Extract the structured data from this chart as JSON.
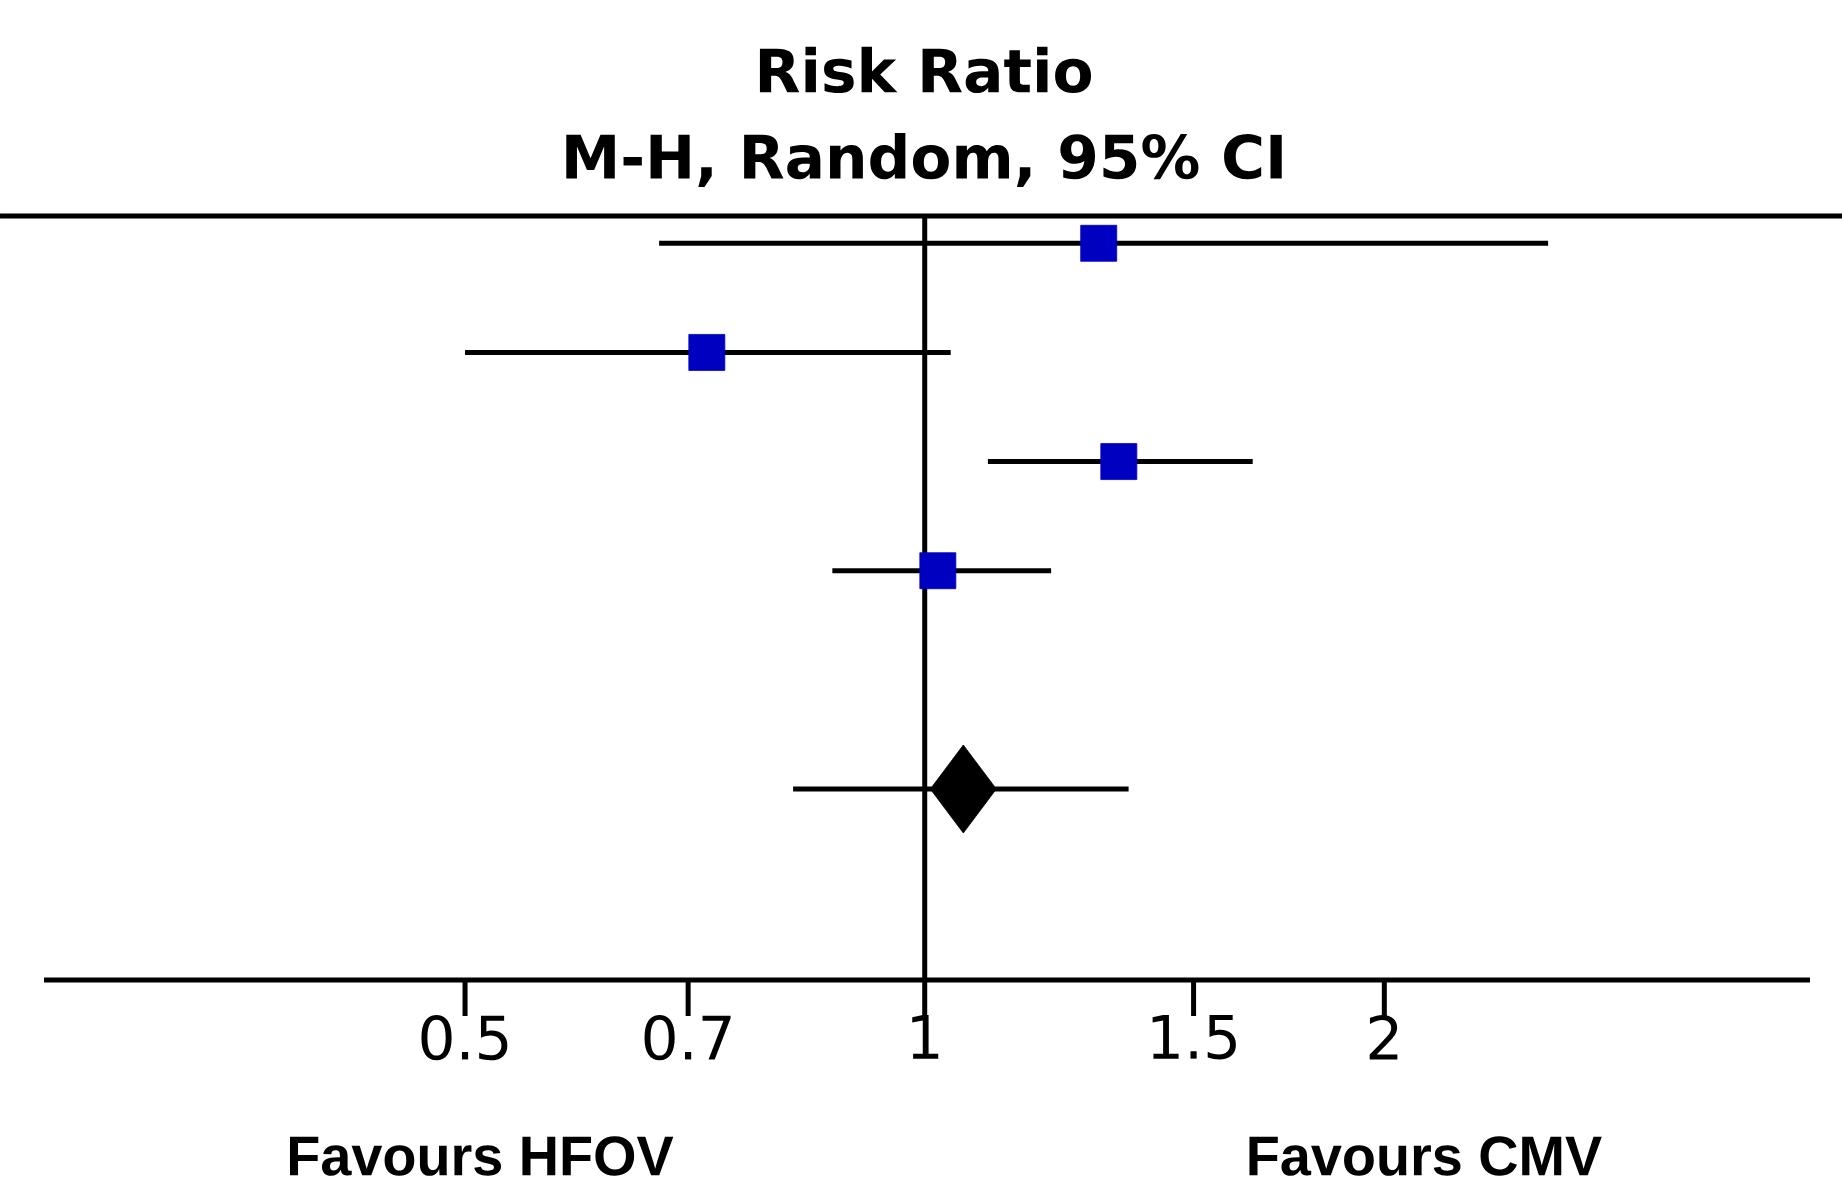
{
  "chart_data": {
    "type": "scatter",
    "orientation": "horizontal",
    "title": "Risk Ratio",
    "subtitle": "M-H, Random, 95% CI",
    "categories": [
      null,
      null,
      null,
      null,
      null,
      null,
      null,
      null,
      null,
      null,
      null,
      null,
      null,
      null
    ],
    "series": [
      {
        "type": "scatter",
        "marker": "square",
        "color": "#0000c0",
        "values": [
          1.3,
          null,
          0.72,
          null,
          1.34,
          null,
          1.02,
          null,
          null,
          null,
          null,
          null,
          null,
          null
        ],
        "errors": [
          [
            0.67,
            2.56
          ],
          null,
          [
            0.5,
            1.04
          ],
          null,
          [
            1.1,
            1.64
          ],
          null,
          [
            0.87,
            1.21
          ],
          null,
          null,
          null,
          null,
          null,
          null,
          null
        ]
      },
      {
        "type": "scatter",
        "marker": "diamond",
        "color": "#000000",
        "values": [
          null,
          null,
          null,
          null,
          null,
          null,
          null,
          null,
          null,
          null,
          1.06,
          null,
          null,
          null
        ],
        "errors": [
          null,
          null,
          null,
          null,
          null,
          null,
          null,
          null,
          null,
          null,
          [
            0.82,
            1.36
          ],
          null,
          null,
          null
        ]
      }
    ],
    "log": "x",
    "xlim": [
      0.265,
      3.8
    ],
    "xticks": [
      0.5,
      0.7,
      1,
      1.5,
      2
    ],
    "tick_labels": "x",
    "ref_lines": [
      {
        "axis": "x",
        "value": 1,
        "color": "#000000"
      }
    ],
    "annotations": [
      "Favours HFOV",
      "Favours CMV"
    ]
  }
}
